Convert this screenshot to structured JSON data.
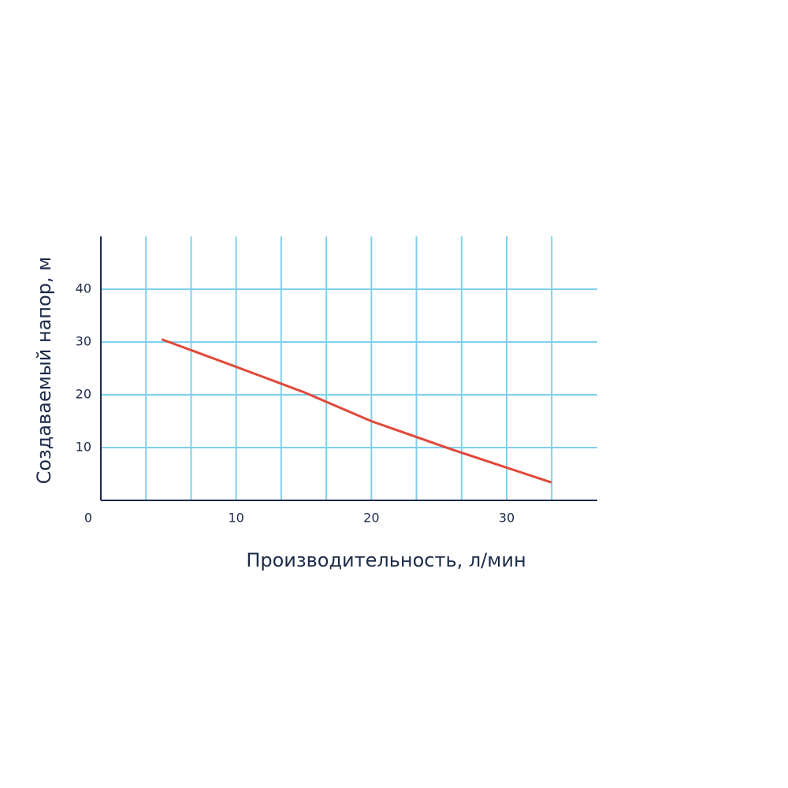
{
  "chart_data": {
    "type": "line",
    "x_label": "Производительность, л/мин",
    "y_label": "Создаваемый напор, м",
    "x": [
      4.5,
      10,
      15,
      20,
      26,
      33.3
    ],
    "series": [
      {
        "color": "#e0493a",
        "values": [
          30.5,
          25.3,
          20.5,
          15,
          9.6,
          3.4
        ]
      }
    ],
    "xlim": [
      0,
      36.7
    ],
    "ylim": [
      0,
      50
    ],
    "xticks": [
      0,
      10,
      20,
      30
    ],
    "yticks": [
      10,
      20,
      30,
      40
    ],
    "xgrid": [
      3.33,
      6.67,
      10,
      13.33,
      16.67,
      20,
      23.33,
      26.67,
      30,
      33.33
    ],
    "grid": true,
    "grid_color": "#7fd0ee",
    "axis_color": "#1c2b4a"
  }
}
